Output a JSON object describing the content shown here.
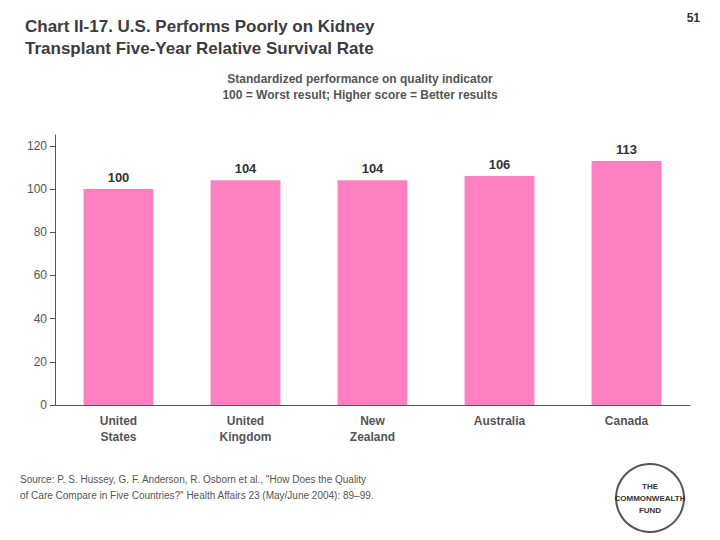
{
  "chart_data": {
    "type": "bar",
    "title": "Chart II-17. U.S. Performs Poorly on Kidney\nTransplant Five-Year Relative Survival Rate",
    "subtitle": "Standardized performance on quality indicator\n100 = Worst result; Higher score = Better results",
    "categories": [
      "United\nStates",
      "United\nKingdom",
      "New\nZealand",
      "Australia",
      "Canada"
    ],
    "values": [
      100,
      104,
      104,
      106,
      113
    ],
    "color": "#FF80C0",
    "ylim": [
      0,
      125
    ],
    "yticks": [
      0,
      20,
      40,
      60,
      80,
      100,
      120
    ],
    "grid": false,
    "data_labels": true,
    "annotations": [
      "51",
      "Source: P. S. Hussey, G. F. Anderson, R. Osborn et al., \"How Does the Quality",
      "of Care Compare in Five Countries?\" Health Affairs 23 (May/June 2004): 89–99.",
      "THE\nCOMMONWEALTH\nFUND"
    ]
  }
}
